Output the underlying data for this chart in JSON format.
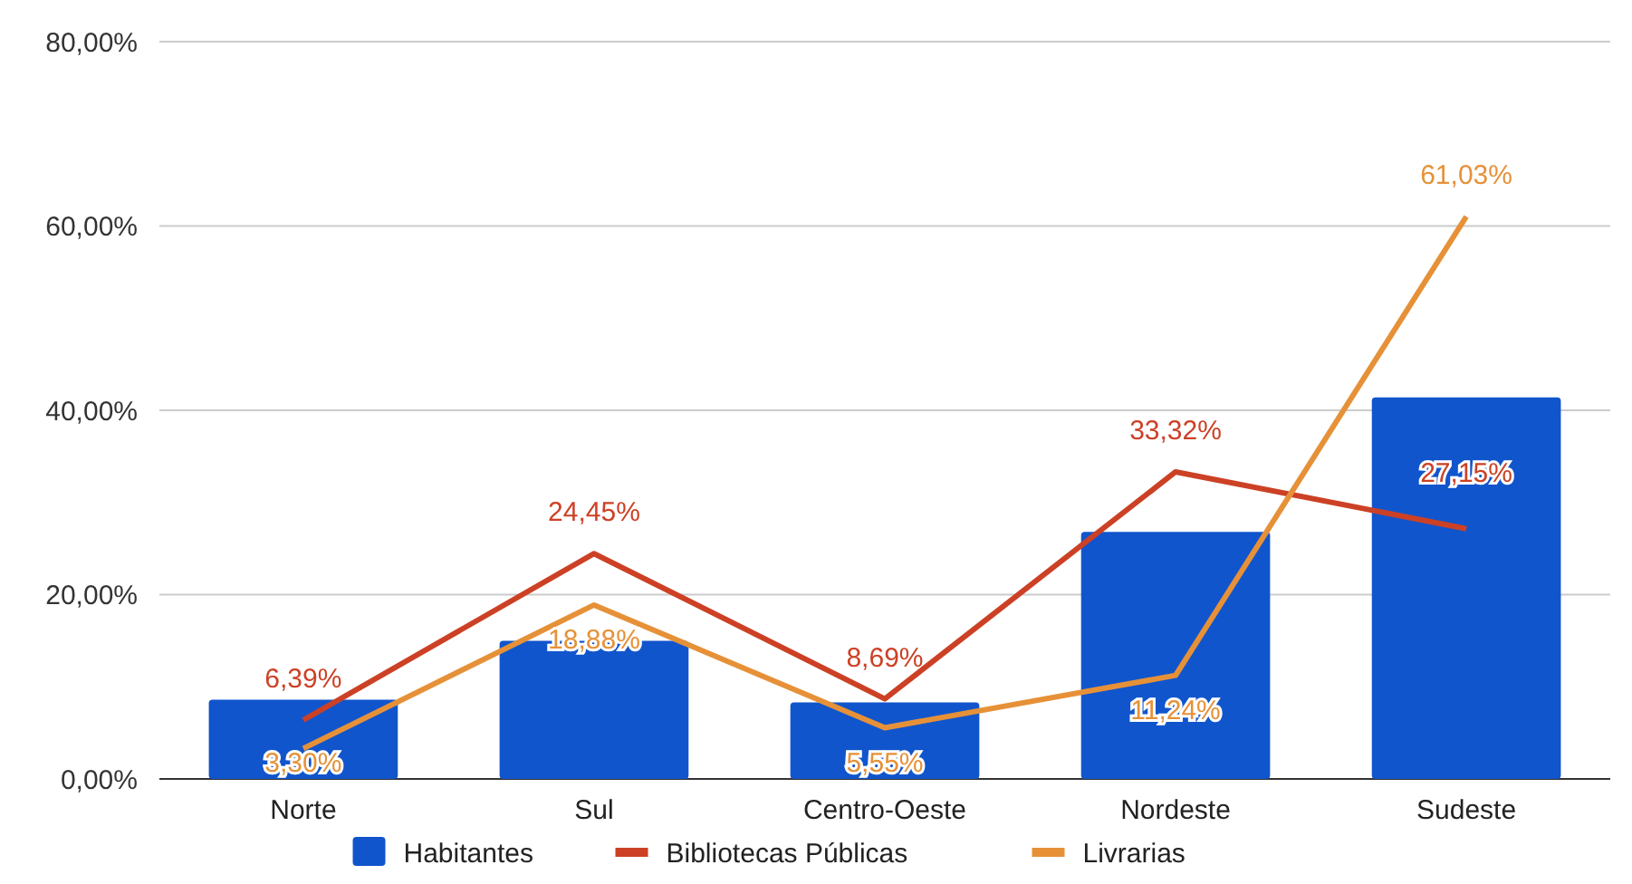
{
  "chart_data": {
    "type": "bar",
    "categories": [
      "Norte",
      "Sul",
      "Centro-Oeste",
      "Nordeste",
      "Sudeste"
    ],
    "series": [
      {
        "name": "Habitantes",
        "color": "#1155cc",
        "values": [
          8.6,
          15.0,
          8.3,
          26.8,
          41.4
        ]
      },
      {
        "name": "Bibliotecas Públicas",
        "type": "line",
        "color": "#cc4125",
        "values": [
          6.39,
          24.45,
          8.69,
          33.32,
          27.15
        ],
        "value_labels": [
          "6,39%",
          "24,45%",
          "8,69%",
          "33,32%",
          "27,15%"
        ]
      },
      {
        "name": "Livrarias",
        "type": "line",
        "color": "#e69138",
        "values": [
          3.3,
          18.88,
          5.55,
          11.24,
          61.03
        ],
        "value_labels": [
          "3,30%",
          "18,88%",
          "5,55%",
          "11,24%",
          "61,03%"
        ]
      }
    ],
    "ylim": [
      0,
      80
    ],
    "yticks": [
      {
        "value": 0,
        "label": "0,00%"
      },
      {
        "value": 20,
        "label": "20,00%"
      },
      {
        "value": 40,
        "label": "40,00%"
      },
      {
        "value": 60,
        "label": "60,00%"
      },
      {
        "value": 80,
        "label": "80,00%"
      }
    ],
    "grid": "y",
    "legend": "bottom"
  }
}
